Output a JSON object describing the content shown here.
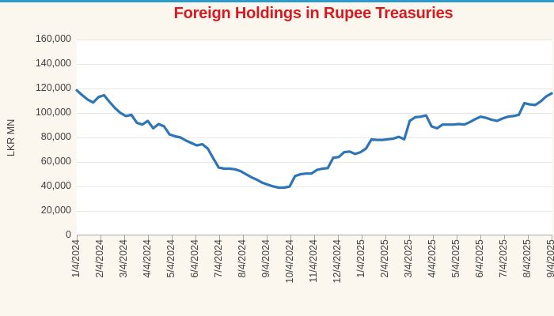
{
  "page": {
    "background_color": "#FBF7EE",
    "top_bar_color": "#2C9BC9",
    "plot_background": "#FFFFFF"
  },
  "chart_data": {
    "type": "line",
    "title": "Foreign Holdings in Rupee Treasuries",
    "title_color": "#D71A21",
    "xlabel": "",
    "ylabel": "LKR MN",
    "ylim": [
      0,
      160000
    ],
    "ytick_step": 20000,
    "ytick_labels": [
      "160,000",
      "140,000",
      "120,000",
      "100,000",
      "80,000",
      "60,000",
      "40,000",
      "20,000",
      "0"
    ],
    "x_categories": [
      "1/4/2024",
      "2/4/2024",
      "3/4/2024",
      "4/4/2024",
      "5/4/2024",
      "6/4/2024",
      "7/4/2024",
      "8/4/2024",
      "9/4/2024",
      "10/4/2024",
      "11/4/2024",
      "12/4/2024",
      "1/4/2025",
      "2/4/2025",
      "3/4/2025",
      "4/4/2025",
      "5/4/2025",
      "6/4/2025",
      "7/4/2025",
      "8/4/2025",
      "9/4/2025"
    ],
    "grid": true,
    "grid_color": "#E9E6E0",
    "axis_color": "#A9A9A9",
    "text_color": "#3F3F3F",
    "legend_position": "none",
    "line_color": "#2E75B6",
    "series": [
      {
        "name": "Foreign Holdings in Rupee Treasuries",
        "cadence": "weekly",
        "values": [
          118500,
          114500,
          111000,
          108500,
          113000,
          114500,
          109000,
          104000,
          100000,
          97500,
          98500,
          92000,
          90500,
          93500,
          87500,
          91000,
          89000,
          82500,
          81000,
          80000,
          77500,
          75500,
          73500,
          74500,
          71000,
          63000,
          55500,
          54500,
          54500,
          54000,
          52500,
          50000,
          47500,
          45500,
          43000,
          41500,
          40000,
          39000,
          39000,
          40000,
          48500,
          50000,
          50500,
          50500,
          53500,
          54500,
          55000,
          63500,
          64000,
          68000,
          68500,
          66500,
          68000,
          71000,
          78500,
          78000,
          78000,
          78500,
          79000,
          80500,
          78500,
          93500,
          96500,
          97000,
          98000,
          89000,
          87500,
          90500,
          90500,
          90500,
          91000,
          90500,
          92500,
          95000,
          97000,
          96000,
          94500,
          93500,
          95500,
          97000,
          97500,
          98500,
          108000,
          107000,
          106500,
          109500,
          113500,
          116000
        ]
      }
    ]
  }
}
